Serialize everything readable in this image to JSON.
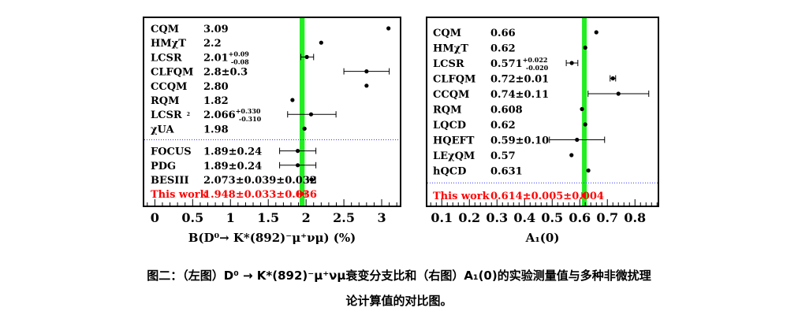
{
  "chart_data": [
    {
      "type": "scatter",
      "title": "",
      "xlabel": "B(D⁰→ K*(892)⁻μ⁺νμ) (%)",
      "ylabel": "",
      "xlim": [
        -0.15,
        3.25
      ],
      "xticks": [
        0,
        0.5,
        1,
        1.5,
        2,
        2.5,
        3
      ],
      "tick_labels": [
        "0",
        "0.5",
        "1",
        "1.5",
        "2",
        "2.5",
        "3"
      ],
      "band": {
        "center": 1.948,
        "half_width": 0.033,
        "color": "#22ee22"
      },
      "points": [
        {
          "name": "CQM",
          "label": "3.09",
          "x": 3.09
        },
        {
          "name": "HMχT",
          "label": "2.2",
          "x": 2.2
        },
        {
          "name": "LCSR",
          "label": "2.01",
          "label_sup": "+0.09",
          "label_sub": "-0.08",
          "x": 2.01,
          "err_lo": 0.08,
          "err_hi": 0.09
        },
        {
          "name": "CLFQM",
          "label": "2.8±0.3",
          "x": 2.8,
          "err_lo": 0.3,
          "err_hi": 0.3
        },
        {
          "name": "CCQM",
          "label": "2.80",
          "x": 2.8
        },
        {
          "name": "RQM",
          "label": "1.82",
          "x": 1.82
        },
        {
          "name": "LCSR",
          "name_sup": "2",
          "label": "2.066",
          "label_sup": "+0.330",
          "label_sub": "-0.310",
          "x": 2.066,
          "err_lo": 0.31,
          "err_hi": 0.33
        },
        {
          "name": "χUA",
          "label": "1.98",
          "x": 1.98
        },
        {
          "name": "FOCUS",
          "label": "1.89±0.24",
          "x": 1.89,
          "err_lo": 0.24,
          "err_hi": 0.24
        },
        {
          "name": "PDG",
          "label": "1.89±0.24",
          "x": 1.89,
          "err_lo": 0.24,
          "err_hi": 0.24
        },
        {
          "name": "BESIII",
          "label": "2.073±0.039±0.032",
          "x": 2.073,
          "err_lo": 0.05,
          "err_hi": 0.05
        },
        {
          "name": "This work",
          "label": "1.948±0.033±0.036",
          "x": 1.948,
          "err_lo": 0.049,
          "err_hi": 0.049,
          "highlight": true
        }
      ],
      "separator_after_index": 7,
      "highlight_color": "#ff0000",
      "separator_color": "#3333ff"
    },
    {
      "type": "scatter",
      "title": "",
      "xlabel": "A₁(0)",
      "ylabel": "",
      "xlim": [
        0.045,
        0.885
      ],
      "xticks": [
        0.1,
        0.2,
        0.3,
        0.4,
        0.5,
        0.6,
        0.7,
        0.8
      ],
      "tick_labels": [
        "0.1",
        "0.2",
        "0.3",
        "0.4",
        "0.5",
        "0.6",
        "0.7",
        "0.8"
      ],
      "band": {
        "center": 0.614,
        "half_width": 0.006,
        "color": "#22ee22"
      },
      "points": [
        {
          "name": "CQM",
          "label": "0.66",
          "x": 0.66
        },
        {
          "name": "HMχT",
          "label": "0.62",
          "x": 0.62
        },
        {
          "name": "LCSR",
          "label": "0.571",
          "label_sup": "+0.022",
          "label_sub": "-0.020",
          "x": 0.571,
          "err_lo": 0.02,
          "err_hi": 0.022
        },
        {
          "name": "CLFQM",
          "label": "0.72±0.01",
          "x": 0.72,
          "err_lo": 0.01,
          "err_hi": 0.01
        },
        {
          "name": "CCQM",
          "label": "0.74±0.11",
          "x": 0.74,
          "err_lo": 0.11,
          "err_hi": 0.11
        },
        {
          "name": "RQM",
          "label": "0.608",
          "x": 0.608
        },
        {
          "name": "LQCD",
          "label": "0.62",
          "x": 0.62
        },
        {
          "name": "HQEFT",
          "label": "0.59±0.10",
          "x": 0.59,
          "err_lo": 0.1,
          "err_hi": 0.1
        },
        {
          "name": "LEχQM",
          "label": "0.57",
          "x": 0.57
        },
        {
          "name": "hQCD",
          "label": "0.631",
          "x": 0.631
        },
        {
          "name": "This work",
          "label": "0.614±0.005±0.004",
          "x": 0.614,
          "err_lo": 0.0065,
          "err_hi": 0.0065,
          "highlight": true
        }
      ],
      "separator_after_index": 9,
      "highlight_color": "#ff0000",
      "separator_color": "#3333ff"
    }
  ],
  "caption": {
    "line1": "图二：（左图）D⁰ → K*(892)⁻μ⁺νμ衰变分支比和（右图）A₁(0)的实验测量值与多种非微扰理",
    "line2": "论计算值的对比图。"
  }
}
